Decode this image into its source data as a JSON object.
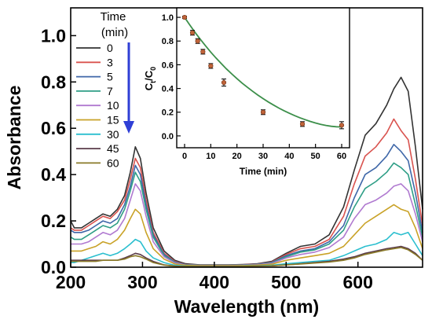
{
  "chart_data": [
    {
      "type": "line",
      "xlabel": "Wavelength (nm)",
      "ylabel": "Absorbance",
      "xlim": [
        200,
        690
      ],
      "ylim": [
        0,
        1.12
      ],
      "xticks": [
        "200",
        "300",
        "400",
        "500",
        "600"
      ],
      "xtick_values": [
        200,
        300,
        400,
        500,
        600
      ],
      "yticks": [
        "0.0",
        "0.2",
        "0.4",
        "0.6",
        "0.8",
        "1.0"
      ],
      "ytick_values": [
        0,
        0.2,
        0.4,
        0.6,
        0.8,
        1.0
      ],
      "legend_title": "Time (min)",
      "legend_title_lines": [
        "Time",
        "(min)"
      ],
      "legend_placement": "top-left",
      "x": [
        200,
        205,
        215,
        225,
        235,
        245,
        255,
        265,
        275,
        283,
        290,
        297,
        305,
        315,
        330,
        345,
        360,
        380,
        400,
        420,
        440,
        460,
        480,
        500,
        520,
        540,
        560,
        580,
        595,
        610,
        625,
        640,
        650,
        660,
        670,
        680,
        690
      ],
      "series": [
        {
          "name": "0",
          "color": "#333333",
          "values": [
            0.2,
            0.17,
            0.17,
            0.19,
            0.21,
            0.23,
            0.22,
            0.25,
            0.31,
            0.41,
            0.52,
            0.47,
            0.32,
            0.17,
            0.07,
            0.03,
            0.015,
            0.01,
            0.01,
            0.01,
            0.012,
            0.015,
            0.025,
            0.06,
            0.09,
            0.1,
            0.14,
            0.26,
            0.42,
            0.57,
            0.62,
            0.7,
            0.77,
            0.82,
            0.76,
            0.52,
            0.25
          ]
        },
        {
          "name": "3",
          "color": "#d9534f",
          "values": [
            0.17,
            0.16,
            0.16,
            0.18,
            0.2,
            0.22,
            0.21,
            0.24,
            0.29,
            0.38,
            0.47,
            0.43,
            0.29,
            0.15,
            0.06,
            0.025,
            0.012,
            0.01,
            0.01,
            0.01,
            0.011,
            0.014,
            0.022,
            0.055,
            0.08,
            0.09,
            0.12,
            0.22,
            0.36,
            0.48,
            0.52,
            0.58,
            0.64,
            0.59,
            0.55,
            0.38,
            0.18
          ]
        },
        {
          "name": "5",
          "color": "#3f67a8",
          "values": [
            0.16,
            0.15,
            0.15,
            0.16,
            0.18,
            0.2,
            0.19,
            0.21,
            0.27,
            0.35,
            0.44,
            0.4,
            0.27,
            0.14,
            0.055,
            0.022,
            0.011,
            0.009,
            0.009,
            0.009,
            0.01,
            0.013,
            0.02,
            0.05,
            0.07,
            0.08,
            0.11,
            0.18,
            0.3,
            0.4,
            0.43,
            0.48,
            0.53,
            0.5,
            0.46,
            0.32,
            0.15
          ]
        },
        {
          "name": "7",
          "color": "#2e9e86",
          "values": [
            0.13,
            0.12,
            0.12,
            0.14,
            0.16,
            0.18,
            0.17,
            0.19,
            0.25,
            0.33,
            0.41,
            0.37,
            0.25,
            0.13,
            0.05,
            0.02,
            0.01,
            0.008,
            0.008,
            0.008,
            0.009,
            0.012,
            0.018,
            0.045,
            0.065,
            0.075,
            0.1,
            0.16,
            0.26,
            0.34,
            0.37,
            0.41,
            0.45,
            0.43,
            0.4,
            0.27,
            0.13
          ]
        },
        {
          "name": "10",
          "color": "#b07ad0",
          "values": [
            0.1,
            0.1,
            0.1,
            0.11,
            0.13,
            0.15,
            0.14,
            0.16,
            0.21,
            0.29,
            0.36,
            0.33,
            0.22,
            0.11,
            0.045,
            0.018,
            0.009,
            0.007,
            0.007,
            0.007,
            0.008,
            0.011,
            0.016,
            0.04,
            0.055,
            0.065,
            0.085,
            0.13,
            0.21,
            0.27,
            0.29,
            0.32,
            0.35,
            0.36,
            0.33,
            0.23,
            0.11
          ]
        },
        {
          "name": "15",
          "color": "#c9a227",
          "values": [
            0.07,
            0.07,
            0.07,
            0.08,
            0.09,
            0.11,
            0.1,
            0.12,
            0.16,
            0.21,
            0.25,
            0.23,
            0.15,
            0.08,
            0.035,
            0.014,
            0.008,
            0.006,
            0.006,
            0.006,
            0.007,
            0.009,
            0.013,
            0.03,
            0.04,
            0.05,
            0.06,
            0.09,
            0.14,
            0.19,
            0.22,
            0.25,
            0.27,
            0.25,
            0.24,
            0.17,
            0.08
          ]
        },
        {
          "name": "30",
          "color": "#2bbfcf",
          "values": [
            0.02,
            0.02,
            0.03,
            0.04,
            0.05,
            0.06,
            0.05,
            0.06,
            0.08,
            0.1,
            0.12,
            0.11,
            0.07,
            0.04,
            0.02,
            0.008,
            0.005,
            0.004,
            0.004,
            0.004,
            0.005,
            0.006,
            0.008,
            0.015,
            0.02,
            0.025,
            0.03,
            0.05,
            0.07,
            0.09,
            0.1,
            0.12,
            0.15,
            0.14,
            0.15,
            0.1,
            0.05
          ]
        },
        {
          "name": "45",
          "color": "#5a3b4a",
          "values": [
            0.03,
            0.03,
            0.03,
            0.03,
            0.03,
            0.03,
            0.03,
            0.03,
            0.04,
            0.05,
            0.06,
            0.055,
            0.04,
            0.025,
            0.01,
            0.005,
            0.003,
            0.003,
            0.003,
            0.003,
            0.004,
            0.005,
            0.006,
            0.01,
            0.015,
            0.02,
            0.025,
            0.035,
            0.045,
            0.06,
            0.07,
            0.08,
            0.085,
            0.09,
            0.08,
            0.06,
            0.03
          ]
        },
        {
          "name": "60",
          "color": "#8a7a28",
          "values": [
            0.025,
            0.025,
            0.025,
            0.025,
            0.025,
            0.03,
            0.03,
            0.03,
            0.035,
            0.045,
            0.05,
            0.045,
            0.035,
            0.02,
            0.009,
            0.004,
            0.003,
            0.003,
            0.003,
            0.003,
            0.004,
            0.005,
            0.006,
            0.01,
            0.014,
            0.018,
            0.022,
            0.03,
            0.04,
            0.055,
            0.065,
            0.075,
            0.08,
            0.085,
            0.075,
            0.055,
            0.03
          ]
        }
      ]
    },
    {
      "type": "scatter",
      "xlabel": "Time (min)",
      "ylabel_main": "C",
      "ylabel_sub1": "t",
      "ylabel_slash": "/C",
      "ylabel_sub2": "0",
      "xlim": [
        -3,
        63
      ],
      "ylim": [
        -0.1,
        1.08
      ],
      "xticks": [
        "0",
        "10",
        "20",
        "30",
        "40",
        "50",
        "60"
      ],
      "xtick_values": [
        0,
        10,
        20,
        30,
        40,
        50,
        60
      ],
      "yticks": [
        "0.0",
        "0.2",
        "0.4",
        "0.6",
        "0.8",
        "1.0"
      ],
      "ytick_values": [
        0,
        0.2,
        0.4,
        0.6,
        0.8,
        1.0
      ],
      "points": {
        "x": [
          0,
          3,
          5,
          7,
          10,
          15,
          30,
          45,
          60
        ],
        "y": [
          1.0,
          0.87,
          0.8,
          0.71,
          0.59,
          0.45,
          0.2,
          0.1,
          0.09
        ],
        "err": [
          0.01,
          0.02,
          0.02,
          0.02,
          0.02,
          0.03,
          0.02,
          0.02,
          0.03
        ],
        "color": "#c0643a"
      },
      "fit": {
        "color": "#3c8f4a",
        "x": [
          0,
          2,
          4,
          6,
          8,
          10,
          12,
          14,
          16,
          18,
          20,
          22,
          24,
          26,
          28,
          30,
          32,
          34,
          36,
          38,
          40,
          42,
          44,
          46,
          48,
          50,
          52,
          54,
          56,
          58,
          60
        ],
        "y": [
          1.0,
          0.935,
          0.873,
          0.815,
          0.76,
          0.707,
          0.657,
          0.61,
          0.565,
          0.523,
          0.483,
          0.445,
          0.41,
          0.376,
          0.344,
          0.314,
          0.286,
          0.26,
          0.235,
          0.212,
          0.191,
          0.171,
          0.153,
          0.137,
          0.122,
          0.109,
          0.097,
          0.088,
          0.081,
          0.077,
          0.076
        ]
      }
    }
  ],
  "colors": {
    "arrow": "#2f3fd6",
    "axis": "#000000"
  }
}
